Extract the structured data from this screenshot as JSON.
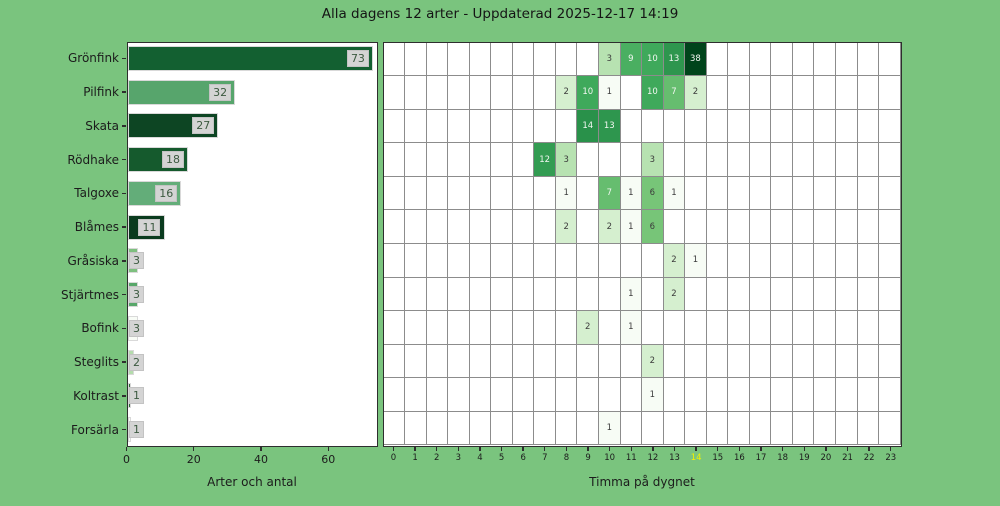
{
  "title": "Alla dagens 12 arter - Uppdaterad 2025-12-17 14:19",
  "colors": {
    "background": "#7ac47e",
    "plot_background": "#ffffff",
    "grid_line": "#8c8c8c",
    "spine": "#2e2e2e",
    "tick_text": "#1c1c1c",
    "highlighted_hour_text": "#f2f200",
    "value_label_bg": "#d4d4d4",
    "value_label_border": "#c3c3c3",
    "value_label_text": "#3c5a40",
    "cell_text_dark": "#3c3c3c",
    "cell_text_light": "#f2f7f1"
  },
  "chart_data": [
    {
      "type": "bar",
      "orientation": "horizontal",
      "xlabel": "Arter och antal",
      "categories": [
        "Grönfink",
        "Pilfink",
        "Skata",
        "Rödhake",
        "Talgoxe",
        "Blåmes",
        "Gråsiska",
        "Stjärtmes",
        "Bofink",
        "Steglits",
        "Koltrast",
        "Forsärla"
      ],
      "values": [
        73,
        32,
        27,
        18,
        16,
        11,
        3,
        3,
        3,
        2,
        1,
        1
      ],
      "bar_colors": [
        "#136031",
        "#57a56c",
        "#0d4523",
        "#155a2d",
        "#63ad79",
        "#0a3b1e",
        "#7ec07f",
        "#58a76a",
        "#f8fcf6",
        "#b4dcac",
        "#2a6d33",
        "#f8fcf6"
      ],
      "xticks": [
        0,
        20,
        40,
        60
      ],
      "xlim": [
        0,
        74.8
      ],
      "grid": false
    },
    {
      "type": "heatmap",
      "xlabel": "Timma på dygnet",
      "rows": [
        "Grönfink",
        "Pilfink",
        "Skata",
        "Rödhake",
        "Talgoxe",
        "Blåmes",
        "Gråsiska",
        "Stjärtmes",
        "Bofink",
        "Steglits",
        "Koltrast",
        "Forsärla"
      ],
      "hours": [
        0,
        1,
        2,
        3,
        4,
        5,
        6,
        7,
        8,
        9,
        10,
        11,
        12,
        13,
        14,
        15,
        16,
        17,
        18,
        19,
        20,
        21,
        22,
        23
      ],
      "highlighted_hour": 14,
      "colormap": "Greens",
      "norm": "log",
      "vmax": 38,
      "cells": [
        {
          "row": "Grönfink",
          "hour": 10,
          "value": 3
        },
        {
          "row": "Grönfink",
          "hour": 11,
          "value": 9
        },
        {
          "row": "Grönfink",
          "hour": 12,
          "value": 10
        },
        {
          "row": "Grönfink",
          "hour": 13,
          "value": 13
        },
        {
          "row": "Grönfink",
          "hour": 14,
          "value": 38
        },
        {
          "row": "Pilfink",
          "hour": 8,
          "value": 2
        },
        {
          "row": "Pilfink",
          "hour": 9,
          "value": 10
        },
        {
          "row": "Pilfink",
          "hour": 10,
          "value": 1
        },
        {
          "row": "Pilfink",
          "hour": 12,
          "value": 10
        },
        {
          "row": "Pilfink",
          "hour": 13,
          "value": 7
        },
        {
          "row": "Pilfink",
          "hour": 14,
          "value": 2
        },
        {
          "row": "Skata",
          "hour": 9,
          "value": 14
        },
        {
          "row": "Skata",
          "hour": 10,
          "value": 13
        },
        {
          "row": "Rödhake",
          "hour": 7,
          "value": 12
        },
        {
          "row": "Rödhake",
          "hour": 8,
          "value": 3
        },
        {
          "row": "Rödhake",
          "hour": 12,
          "value": 3
        },
        {
          "row": "Talgoxe",
          "hour": 8,
          "value": 1
        },
        {
          "row": "Talgoxe",
          "hour": 10,
          "value": 7
        },
        {
          "row": "Talgoxe",
          "hour": 11,
          "value": 1
        },
        {
          "row": "Talgoxe",
          "hour": 12,
          "value": 6
        },
        {
          "row": "Talgoxe",
          "hour": 13,
          "value": 1
        },
        {
          "row": "Blåmes",
          "hour": 8,
          "value": 2
        },
        {
          "row": "Blåmes",
          "hour": 10,
          "value": 2
        },
        {
          "row": "Blåmes",
          "hour": 11,
          "value": 1
        },
        {
          "row": "Blåmes",
          "hour": 12,
          "value": 6
        },
        {
          "row": "Gråsiska",
          "hour": 13,
          "value": 2
        },
        {
          "row": "Gråsiska",
          "hour": 14,
          "value": 1
        },
        {
          "row": "Stjärtmes",
          "hour": 11,
          "value": 1
        },
        {
          "row": "Stjärtmes",
          "hour": 13,
          "value": 2
        },
        {
          "row": "Bofink",
          "hour": 9,
          "value": 2
        },
        {
          "row": "Bofink",
          "hour": 11,
          "value": 1
        },
        {
          "row": "Steglits",
          "hour": 12,
          "value": 2
        },
        {
          "row": "Koltrast",
          "hour": 12,
          "value": 1
        },
        {
          "row": "Forsärla",
          "hour": 10,
          "value": 1
        }
      ]
    }
  ]
}
